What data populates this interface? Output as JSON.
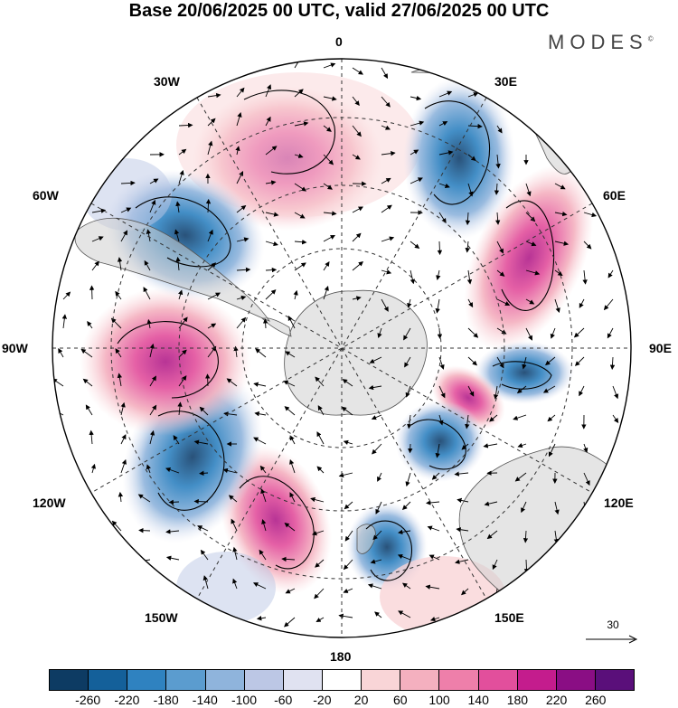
{
  "header": {
    "title": "Base 20/06/2025 00 UTC, valid 27/06/2025 00 UTC",
    "brand": "MODES",
    "brand_mark": "©"
  },
  "map": {
    "projection": "south-polar-stereographic",
    "longitude_labels": {
      "lon_0": "0",
      "lon_30e": "30E",
      "lon_60e": "60E",
      "lon_90e": "90E",
      "lon_120e": "120E",
      "lon_150e": "150E",
      "lon_180": "180",
      "lon_150w": "150W",
      "lon_120w": "120W",
      "lon_90w": "90W",
      "lon_60w": "60W",
      "lon_30w": "30W"
    },
    "field": "geopotential height anomaly with wind vectors",
    "anomaly_centers": [
      {
        "sign": "positive",
        "lon": "15W",
        "approx_value": 160
      },
      {
        "sign": "negative",
        "lon": "30E",
        "approx_value": -180
      },
      {
        "sign": "positive",
        "lon": "65E",
        "approx_value": 160
      },
      {
        "sign": "negative",
        "lon": "95E",
        "approx_value": -140
      },
      {
        "sign": "positive",
        "lon": "115E",
        "approx_value": 100
      },
      {
        "sign": "negative",
        "lon": "140E",
        "approx_value": -140
      },
      {
        "sign": "negative",
        "lon": "175E",
        "approx_value": -120
      },
      {
        "sign": "positive",
        "lon": "155W",
        "approx_value": 140
      },
      {
        "sign": "negative",
        "lon": "125W",
        "approx_value": -240
      },
      {
        "sign": "positive",
        "lon": "95W",
        "approx_value": 240
      },
      {
        "sign": "negative",
        "lon": "60W",
        "approx_value": -220
      }
    ],
    "reference_vector": "30"
  },
  "colorbar": {
    "ticks": [
      "-260",
      "-220",
      "-180",
      "-140",
      "-100",
      "-60",
      "-20",
      "20",
      "60",
      "100",
      "140",
      "180",
      "220",
      "260"
    ],
    "colors": [
      "#0d3b63",
      "#14609a",
      "#2f82c0",
      "#5b9ccf",
      "#8fb4dc",
      "#bcc7e5",
      "#e0e2f1",
      "#ffffff",
      "#f9d5d7",
      "#f4b0bf",
      "#ee7faa",
      "#e24f9c",
      "#c41c8d",
      "#8a0e84",
      "#5a0f7a"
    ]
  }
}
